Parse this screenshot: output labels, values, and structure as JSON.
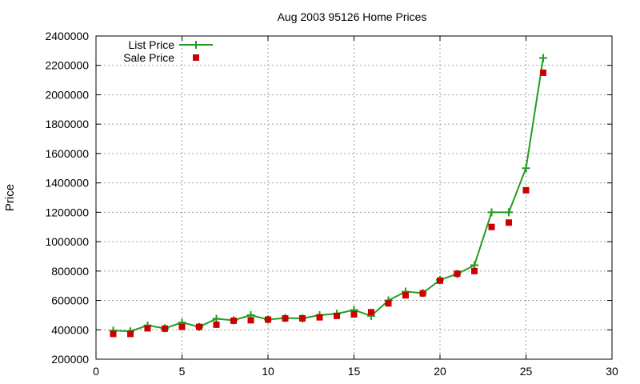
{
  "chart_data": {
    "type": "line",
    "title": "Aug 2003 95126 Home Prices",
    "xlabel": "",
    "ylabel": "Price",
    "xlim": [
      0,
      30
    ],
    "ylim": [
      200000,
      2400000
    ],
    "xticks": [
      0,
      5,
      10,
      15,
      20,
      25,
      30
    ],
    "yticks": [
      200000,
      400000,
      600000,
      800000,
      1000000,
      1200000,
      1400000,
      1600000,
      1800000,
      2000000,
      2200000,
      2400000
    ],
    "grid": true,
    "legend_position": "top-left",
    "series": [
      {
        "name": "List Price",
        "style": "line-with-plus",
        "color": "#1f9e1f",
        "x": [
          1,
          2,
          3,
          4,
          5,
          6,
          7,
          8,
          9,
          10,
          11,
          12,
          13,
          14,
          15,
          16,
          17,
          18,
          19,
          20,
          21,
          22,
          23,
          24,
          25,
          26
        ],
        "y": [
          395000,
          390000,
          430000,
          410000,
          450000,
          420000,
          475000,
          465000,
          500000,
          470000,
          480000,
          478000,
          500000,
          510000,
          535000,
          495000,
          600000,
          660000,
          650000,
          740000,
          780000,
          840000,
          1200000,
          1200000,
          1500000,
          2250000
        ]
      },
      {
        "name": "Sale Price",
        "style": "square-markers",
        "color": "#cc0000",
        "x": [
          1,
          2,
          3,
          4,
          5,
          6,
          7,
          8,
          9,
          10,
          11,
          12,
          13,
          14,
          15,
          16,
          17,
          18,
          19,
          20,
          21,
          22,
          23,
          24,
          25,
          26
        ],
        "y": [
          372000,
          372000,
          410000,
          408000,
          420000,
          420000,
          435000,
          462000,
          465000,
          470000,
          478000,
          478000,
          485000,
          495000,
          505000,
          520000,
          580000,
          635000,
          648000,
          735000,
          782000,
          800000,
          1100000,
          1130000,
          1350000,
          2150000
        ]
      }
    ]
  }
}
